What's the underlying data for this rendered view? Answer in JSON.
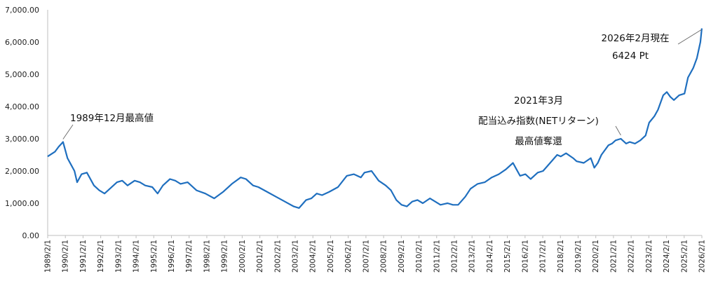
{
  "chart_data": {
    "type": "line",
    "title": "",
    "xlabel": "",
    "ylabel": "",
    "ylim": [
      0,
      7000
    ],
    "grid": false,
    "legend": "none",
    "line_color": "#1f6fbf",
    "y_ticks": [
      "0.00",
      "1,000.00",
      "2,000.00",
      "3,000.00",
      "4,000.00",
      "5,000.00",
      "6,000.00",
      "7,000.00"
    ],
    "x_ticks": [
      "1989/2/1",
      "1990/2/1",
      "1991/2/1",
      "1992/2/1",
      "1993/2/1",
      "1994/2/1",
      "1995/2/1",
      "1996/2/1",
      "1997/2/1",
      "1998/2/1",
      "1999/2/1",
      "2000/2/1",
      "2001/2/1",
      "2002/2/1",
      "2003/2/1",
      "2004/2/1",
      "2005/2/1",
      "2006/2/1",
      "2007/2/1",
      "2008/2/1",
      "2009/2/1",
      "2010/2/1",
      "2011/2/1",
      "2012/2/1",
      "2013/2/1",
      "2014/2/1",
      "2015/2/1",
      "2016/2/1",
      "2017/2/1",
      "2018/2/1",
      "2019/2/1",
      "2020/2/1",
      "2021/2/1",
      "2022/2/1",
      "2023/2/1",
      "2024/2/1",
      "2025/2/1",
      "2026/2/1"
    ],
    "series": [
      {
        "x": [
          1989.08,
          1989.5,
          1989.7,
          1989.95,
          1990.2,
          1990.4,
          1990.6,
          1990.75,
          1991.0,
          1991.3,
          1991.7,
          1992.0,
          1992.3,
          1992.6,
          1993.0,
          1993.3,
          1993.6,
          1994.0,
          1994.3,
          1994.6,
          1995.0,
          1995.3,
          1995.6,
          1996.0,
          1996.3,
          1996.6,
          1997.0,
          1997.5,
          1998.0,
          1998.5,
          1999.0,
          1999.5,
          2000.0,
          2000.3,
          2000.7,
          2001.0,
          2001.5,
          2002.0,
          2002.5,
          2003.0,
          2003.3,
          2003.7,
          2004.0,
          2004.3,
          2004.6,
          2005.0,
          2005.5,
          2006.0,
          2006.4,
          2006.8,
          2007.0,
          2007.4,
          2007.8,
          2008.2,
          2008.5,
          2008.8,
          2009.1,
          2009.4,
          2009.7,
          2010.0,
          2010.3,
          2010.7,
          2011.0,
          2011.3,
          2011.7,
          2012.0,
          2012.3,
          2012.7,
          2013.0,
          2013.4,
          2013.8,
          2014.2,
          2014.6,
          2015.0,
          2015.4,
          2015.6,
          2015.8,
          2016.1,
          2016.4,
          2016.8,
          2017.1,
          2017.5,
          2017.9,
          2018.1,
          2018.4,
          2018.8,
          2019.0,
          2019.4,
          2019.8,
          2020.0,
          2020.2,
          2020.4,
          2020.8,
          2021.0,
          2021.2,
          2021.5,
          2021.8,
          2022.0,
          2022.3,
          2022.6,
          2022.9,
          2023.1,
          2023.4,
          2023.6,
          2023.9,
          2024.1,
          2024.3,
          2024.5,
          2024.8,
          2025.1,
          2025.3,
          2025.6,
          2025.8,
          2026.0,
          2026.08
        ],
        "y": [
          2450,
          2600,
          2750,
          2900,
          2400,
          2200,
          2000,
          1650,
          1900,
          1950,
          1550,
          1400,
          1300,
          1450,
          1650,
          1700,
          1550,
          1700,
          1650,
          1550,
          1500,
          1300,
          1550,
          1750,
          1700,
          1600,
          1650,
          1400,
          1300,
          1150,
          1350,
          1600,
          1800,
          1750,
          1550,
          1500,
          1350,
          1200,
          1050,
          900,
          850,
          1100,
          1150,
          1300,
          1250,
          1350,
          1500,
          1850,
          1900,
          1800,
          1950,
          2000,
          1700,
          1550,
          1400,
          1100,
          950,
          900,
          1050,
          1100,
          1000,
          1150,
          1050,
          950,
          1000,
          950,
          950,
          1200,
          1450,
          1600,
          1650,
          1800,
          1900,
          2050,
          2250,
          2050,
          1850,
          1900,
          1750,
          1950,
          2000,
          2250,
          2500,
          2450,
          2550,
          2400,
          2300,
          2250,
          2400,
          2100,
          2250,
          2500,
          2800,
          2850,
          2950,
          3000,
          2850,
          2900,
          2850,
          2950,
          3100,
          3500,
          3700,
          3900,
          4350,
          4450,
          4300,
          4200,
          4350,
          4400,
          4900,
          5200,
          5500,
          6000,
          6424
        ]
      }
    ],
    "annotations": [
      {
        "lines": [
          "1989年12月最高値"
        ]
      },
      {
        "lines": [
          "2021年3月",
          "配当込み指数(NETリターン)",
          "最高値奪還"
        ]
      },
      {
        "lines": [
          "2026年2月現在",
          "6424 Pt"
        ]
      }
    ]
  }
}
